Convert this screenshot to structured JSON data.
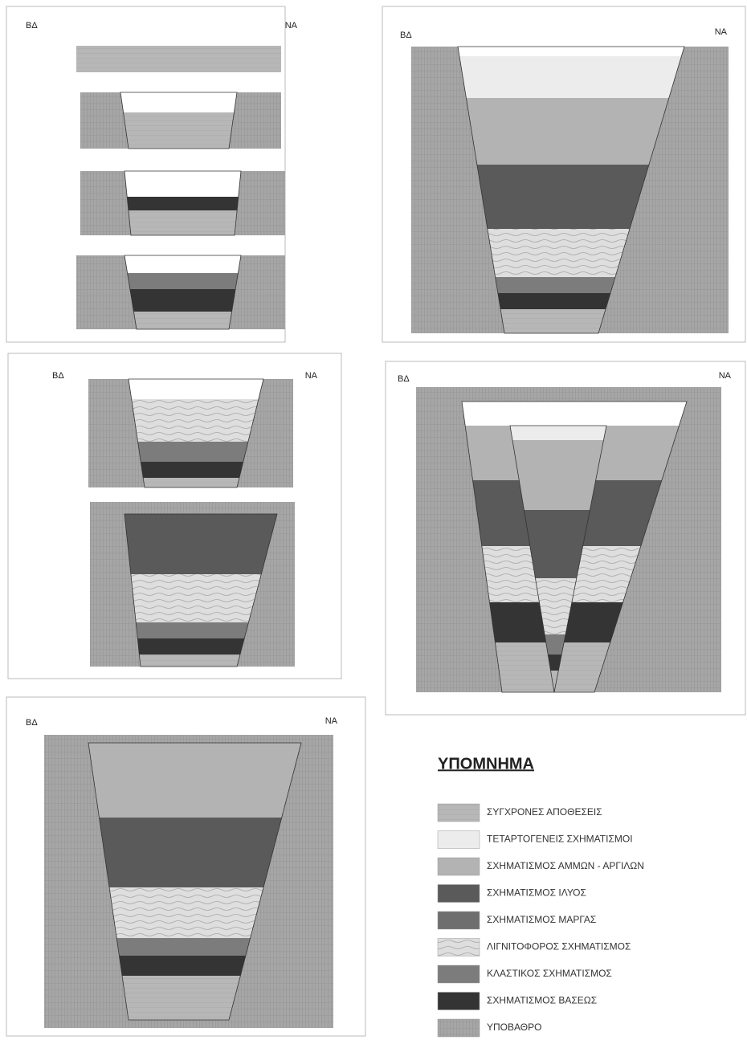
{
  "panels": [
    {
      "left_label": "ΒΔ",
      "right_label": "ΝΑ"
    },
    {
      "left_label": "ΒΔ",
      "right_label": "ΝΑ"
    },
    {
      "left_label": "ΒΔ",
      "right_label": "ΝΑ"
    },
    {
      "left_label": "ΒΔ",
      "right_label": "ΝΑ"
    },
    {
      "left_label": "ΒΔ",
      "right_label": "ΝΑ"
    }
  ],
  "legend": {
    "title": "ΥΠΟΜΝΗΜΑ",
    "items": [
      "ΣΥΓΧΡΟΝΕΣ ΑΠΟΘΕΣΕΙΣ",
      "ΤΕΤΑΡΤΟΓΕΝΕΙΣ ΣΧΗΜΑΤΙΣΜΟΙ",
      "ΣΧΗΜΑΤΙΣΜΟΣ ΑΜΜΩΝ - ΑΡΓΙΛΩΝ",
      "ΣΧΗΜΑΤΙΣΜΟΣ ΙΛΥΟΣ",
      "ΣΧΗΜΑΤΙΣΜΟΣ ΜΑΡΓΑΣ",
      "ΛΙΓΝΙΤΟΦΟΡΟΣ ΣΧΗΜΑΤΙΣΜΟΣ",
      "ΚΛΑΣΤΙΚΟΣ ΣΧΗΜΑΤΙΣΜΟΣ",
      "ΣΧΗΜΑΤΙΣΜΟΣ ΒΑΣΕΩΣ",
      "ΥΠΟΒΑΘΡΟ"
    ]
  }
}
